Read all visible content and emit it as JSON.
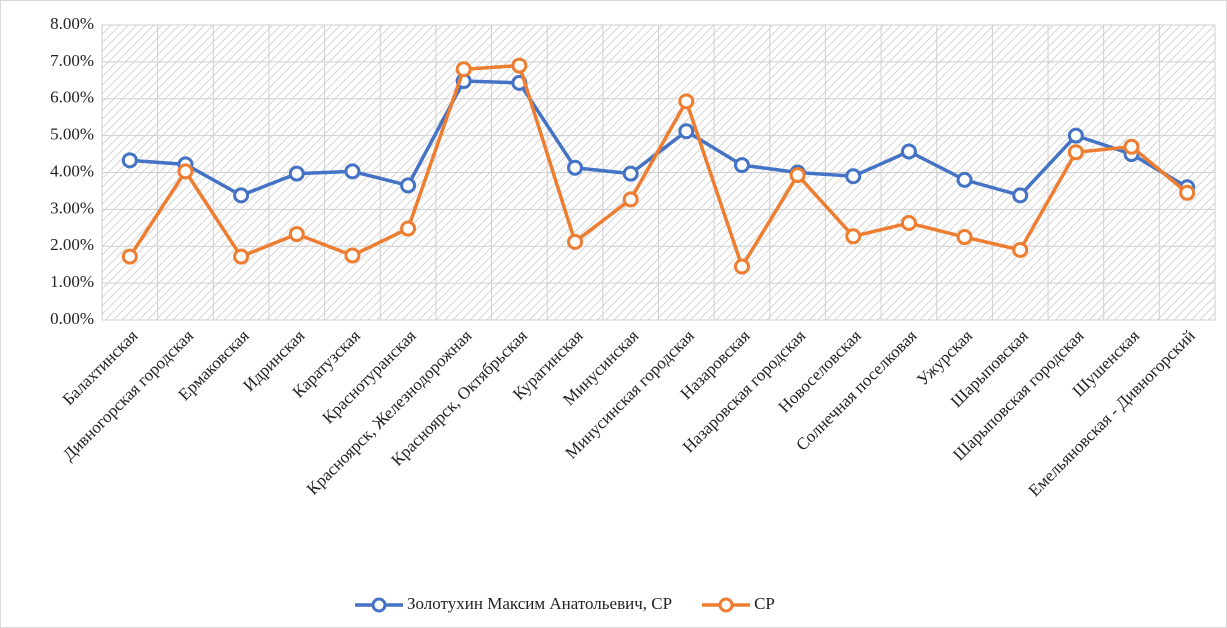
{
  "chart_data": {
    "type": "line",
    "categories": [
      "Балахтинская",
      "Дивногорская городская",
      "Ермаковская",
      "Идринская",
      "Каратузская",
      "Краснотуранская",
      "Красноярск, Железнодорожная",
      "Красноярск, Октябрьская",
      "Курагинская",
      "Минусинская",
      "Минусинская городская",
      "Назаровская",
      "Назаровская городская",
      "Новоселовская",
      "Солнечная поселковая",
      "Ужурская",
      "Шарыповская",
      "Шарыповская городская",
      "Шушенская",
      "Емельяновская - Дивногорский"
    ],
    "series": [
      {
        "name": "Золотухин Максим Анатольевич, СР",
        "color": "#4472c4",
        "values": [
          4.33,
          4.22,
          3.38,
          3.97,
          4.03,
          3.65,
          6.48,
          6.43,
          4.13,
          3.97,
          5.12,
          4.2,
          4.0,
          3.9,
          4.57,
          3.8,
          3.38,
          5.0,
          4.5,
          3.6
        ]
      },
      {
        "name": "СР",
        "color": "#ed7d31",
        "values": [
          1.72,
          4.03,
          1.72,
          2.33,
          1.75,
          2.48,
          6.8,
          6.9,
          2.12,
          3.27,
          5.93,
          1.45,
          3.93,
          2.27,
          2.63,
          2.25,
          1.9,
          4.55,
          4.7,
          3.45
        ]
      }
    ],
    "ylim": [
      0,
      8
    ],
    "yticks": [
      {
        "value": 0,
        "label": "0.00%"
      },
      {
        "value": 1,
        "label": "1.00%"
      },
      {
        "value": 2,
        "label": "2.00%"
      },
      {
        "value": 3,
        "label": "3.00%"
      },
      {
        "value": 4,
        "label": "4.00%"
      },
      {
        "value": 5,
        "label": "5.00%"
      },
      {
        "value": 6,
        "label": "6.00%"
      },
      {
        "value": 7,
        "label": "7.00%"
      },
      {
        "value": 8,
        "label": "8.00%"
      }
    ],
    "grid": true,
    "legend": "bottom"
  }
}
